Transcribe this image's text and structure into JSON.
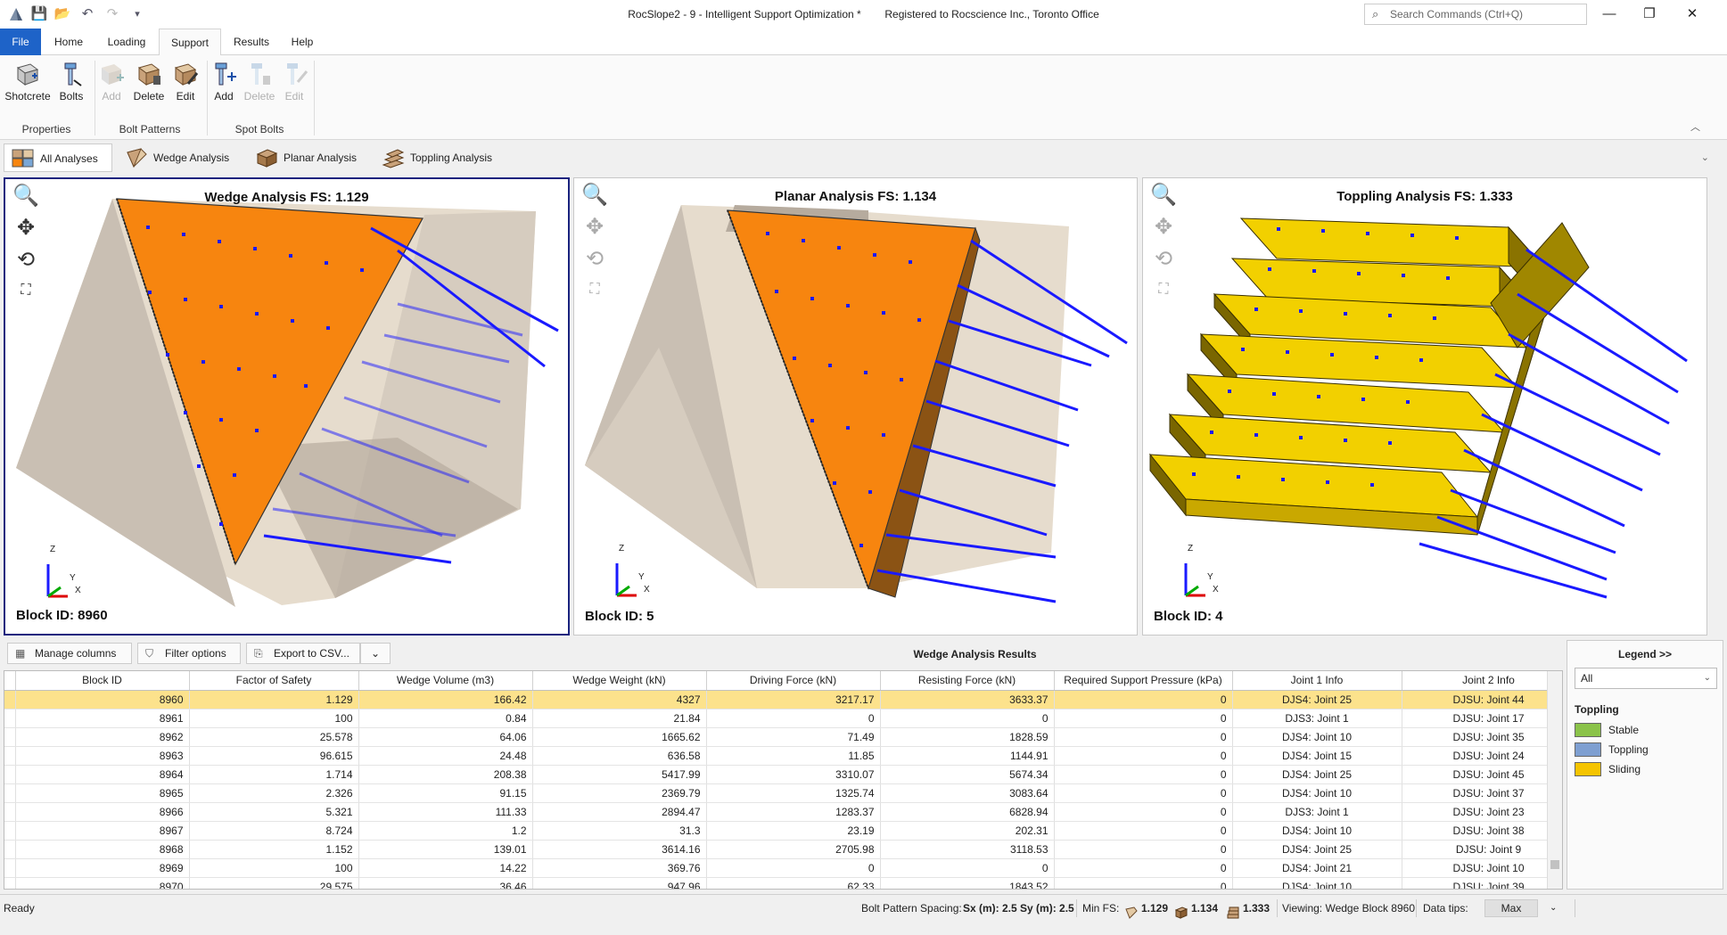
{
  "window": {
    "title": "RocSlope2 - 9 - Intelligent Support Optimization *",
    "registration": "Registered to Rocscience Inc., Toronto Office",
    "search_placeholder": "Search Commands (Ctrl+Q)",
    "minimize": "—",
    "restore": "❐",
    "close": "✕"
  },
  "quick_access": {
    "save": "💾",
    "open": "📂",
    "undo": "↶",
    "redo": "↷",
    "more": "▾"
  },
  "menu": {
    "tabs": [
      "File",
      "Home",
      "Loading",
      "Support",
      "Results",
      "Help"
    ],
    "active": "Support"
  },
  "ribbon": {
    "properties": {
      "shotcrete": "Shotcrete",
      "bolts": "Bolts",
      "group": "Properties"
    },
    "bolt_patterns": {
      "add": "Add",
      "delete": "Delete",
      "edit": "Edit",
      "group": "Bolt Patterns"
    },
    "spot_bolts": {
      "add": "Add",
      "delete": "Delete",
      "edit": "Edit",
      "group": "Spot Bolts"
    },
    "collapse": "︿"
  },
  "view_tabs": {
    "all": "All Analyses",
    "wedge": "Wedge Analysis",
    "planar": "Planar Analysis",
    "toppling": "Toppling Analysis",
    "chevron": "⌄"
  },
  "viewports": [
    {
      "title": "Wedge Analysis FS: 1.129",
      "block": "Block ID: 8960"
    },
    {
      "title": "Planar Analysis FS: 1.134",
      "block": "Block ID: 5"
    },
    {
      "title": "Toppling Analysis FS: 1.333",
      "block": "Block ID: 4"
    }
  ],
  "tools": {
    "zoom": "🔍",
    "pan": "✥",
    "rotate": "⟲",
    "fit": "⛶"
  },
  "axes": {
    "z": "Z",
    "y": "Y",
    "x": "X"
  },
  "table_toolbar": {
    "manage_columns": "Manage columns",
    "filter": "Filter options",
    "export": "Export to CSV...",
    "dropdown": "⌄",
    "results_title": "Wedge Analysis Results"
  },
  "table": {
    "columns": [
      "Block ID",
      "Factor of Safety",
      "Wedge Volume (m3)",
      "Wedge Weight (kN)",
      "Driving Force (kN)",
      "Resisting Force (kN)",
      "Required Support Pressure (kPa)",
      "Joint 1 Info",
      "Joint 2 Info"
    ],
    "rows": [
      [
        "8960",
        "1.129",
        "166.42",
        "4327",
        "3217.17",
        "3633.37",
        "0",
        "DJS4: Joint 25",
        "DJSU: Joint 44"
      ],
      [
        "8961",
        "100",
        "0.84",
        "21.84",
        "0",
        "0",
        "0",
        "DJS3: Joint 1",
        "DJSU: Joint 17"
      ],
      [
        "8962",
        "25.578",
        "64.06",
        "1665.62",
        "71.49",
        "1828.59",
        "0",
        "DJS4: Joint 10",
        "DJSU: Joint 35"
      ],
      [
        "8963",
        "96.615",
        "24.48",
        "636.58",
        "11.85",
        "1144.91",
        "0",
        "DJS4: Joint 15",
        "DJSU: Joint 24"
      ],
      [
        "8964",
        "1.714",
        "208.38",
        "5417.99",
        "3310.07",
        "5674.34",
        "0",
        "DJS4: Joint 25",
        "DJSU: Joint 45"
      ],
      [
        "8965",
        "2.326",
        "91.15",
        "2369.79",
        "1325.74",
        "3083.64",
        "0",
        "DJS4: Joint 10",
        "DJSU: Joint 37"
      ],
      [
        "8966",
        "5.321",
        "111.33",
        "2894.47",
        "1283.37",
        "6828.94",
        "0",
        "DJS3: Joint 1",
        "DJSU: Joint 23"
      ],
      [
        "8967",
        "8.724",
        "1.2",
        "31.3",
        "23.19",
        "202.31",
        "0",
        "DJS4: Joint 10",
        "DJSU: Joint 38"
      ],
      [
        "8968",
        "1.152",
        "139.01",
        "3614.16",
        "2705.98",
        "3118.53",
        "0",
        "DJS4: Joint 25",
        "DJSU: Joint 9"
      ],
      [
        "8969",
        "100",
        "14.22",
        "369.76",
        "0",
        "0",
        "0",
        "DJS4: Joint 21",
        "DJSU: Joint 10"
      ],
      [
        "8970",
        "29.575",
        "36.46",
        "947.96",
        "62.33",
        "1843.52",
        "0",
        "DJS4: Joint 10",
        "DJSU: Joint 39"
      ]
    ],
    "selected_row": 0
  },
  "legend": {
    "header": "Legend >>",
    "filter": "All",
    "group": "Toppling",
    "items": [
      {
        "label": "Stable",
        "color": "#8bc34a"
      },
      {
        "label": "Toppling",
        "color": "#7e9fd1"
      },
      {
        "label": "Sliding",
        "color": "#f5c400"
      }
    ]
  },
  "status": {
    "ready": "Ready",
    "spacing_label": "Bolt Pattern Spacing:",
    "spacing_value": "Sx (m): 2.5 Sy (m): 2.5",
    "min_fs_label": "Min FS:",
    "fs_wedge": "1.129",
    "fs_planar": "1.134",
    "fs_toppling": "1.333",
    "viewing": "Viewing: Wedge Block 8960",
    "data_tips_label": "Data tips:",
    "data_tips_value": "Max"
  },
  "colors": {
    "accent": "#1e63c8",
    "block": "#f7850f",
    "bolt": "#1a1aff",
    "rock": "#e4d8c8",
    "selected_row": "#fce28c",
    "toppling_block": "#e8c000"
  }
}
